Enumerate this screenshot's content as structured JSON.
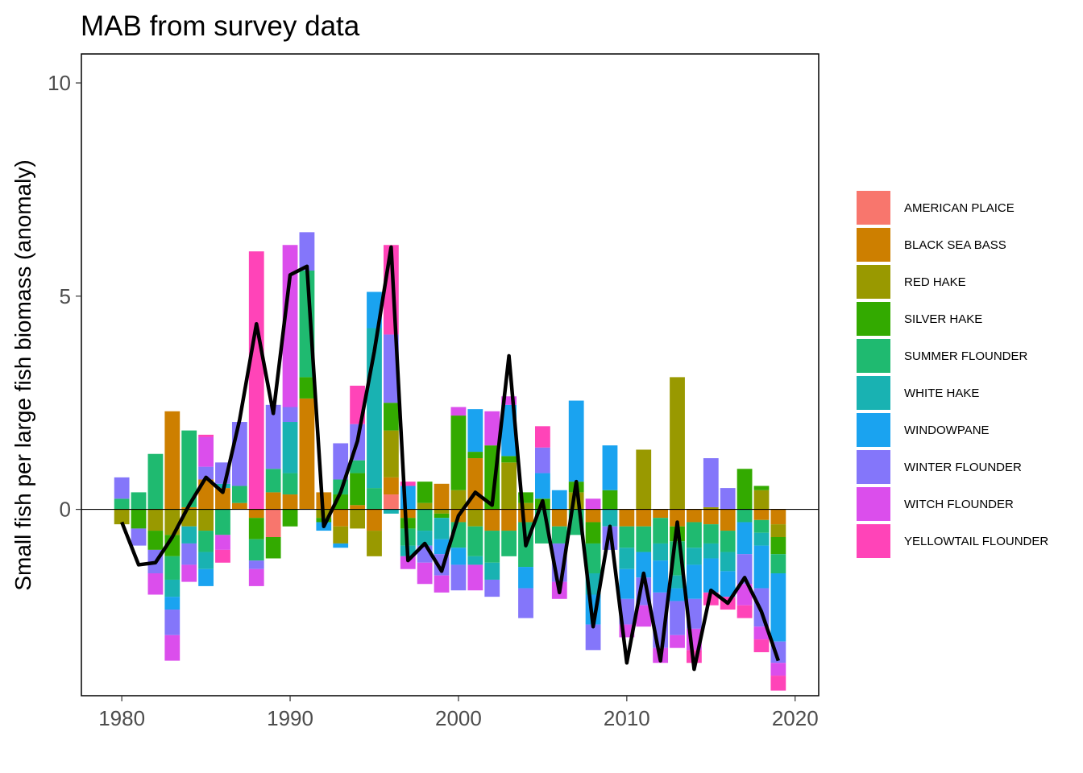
{
  "chart_data": {
    "type": "bar",
    "stacked": true,
    "title": "MAB from survey data",
    "xlabel": "",
    "ylabel": "Small fish per large fish biomass (anomaly)",
    "xlim": [
      1977.6,
      2021.4
    ],
    "ylim": [
      -4.37,
      10.68
    ],
    "xticks": [
      1980,
      1990,
      2000,
      2010,
      2020
    ],
    "xtick_labels": [
      "1980",
      "1990",
      "2000",
      "2010",
      "2020"
    ],
    "yticks": [
      0,
      5,
      10
    ],
    "ytick_labels": [
      "0",
      "5",
      "10"
    ],
    "zero_line": 0,
    "grid": false,
    "legend_position": "right",
    "line_series": {
      "name": "",
      "color": "#000000",
      "x": [
        1980,
        1981,
        1982,
        1983,
        1984,
        1985,
        1986,
        1987,
        1988,
        1989,
        1990,
        1991,
        1992,
        1993,
        1994,
        1995,
        1996,
        1997,
        1998,
        1999,
        2000,
        2001,
        2002,
        2003,
        2004,
        2005,
        2006,
        2007,
        2008,
        2009,
        2010,
        2011,
        2012,
        2013,
        2014,
        2015,
        2016,
        2017,
        2018,
        2019
      ],
      "y": [
        -0.3,
        -1.3,
        -1.25,
        -0.65,
        0.1,
        0.75,
        0.4,
        2.1,
        4.35,
        2.25,
        5.5,
        5.7,
        -0.4,
        0.4,
        1.6,
        3.7,
        6.15,
        -1.2,
        -0.8,
        -1.45,
        -0.15,
        0.4,
        0.1,
        3.6,
        -0.85,
        0.2,
        -1.95,
        0.65,
        -2.75,
        -0.4,
        -3.6,
        -1.5,
        -3.55,
        -0.3,
        -3.75,
        -1.9,
        -2.2,
        -1.6,
        -2.4,
        -3.55
      ]
    },
    "series": [
      {
        "name": "AMERICAN PLAICE",
        "color": "#F8766D",
        "values": [
          0,
          0,
          0,
          0,
          0,
          0,
          0,
          0,
          0,
          -0.65,
          0,
          0,
          0,
          0,
          0,
          0,
          0.35,
          0,
          0,
          0,
          0,
          0,
          0,
          0,
          0,
          0,
          0,
          0,
          0,
          0,
          0,
          0,
          0,
          0,
          0,
          0,
          0,
          0,
          0,
          0
        ]
      },
      {
        "name": "BLACK SEA BASS",
        "color": "#CD7F00",
        "values": [
          0,
          0,
          0,
          2.3,
          0.05,
          0.7,
          0.5,
          0.15,
          -0.2,
          0.4,
          0.35,
          2.6,
          0.4,
          -0.4,
          0.1,
          -0.5,
          0.4,
          -0.2,
          0,
          0.6,
          -0.3,
          1.2,
          -0.5,
          -0.5,
          -0.3,
          0,
          -0.4,
          0,
          -0.3,
          0,
          -0.4,
          -0.4,
          -0.2,
          -0.4,
          -0.3,
          -0.35,
          -0.5,
          0,
          -0.25,
          -0.35
        ]
      },
      {
        "name": "RED HAKE",
        "color": "#999900",
        "values": [
          -0.35,
          0,
          -0.5,
          -0.6,
          -0.4,
          -0.5,
          0,
          0,
          0,
          0,
          0,
          0,
          -0.2,
          -0.4,
          -0.45,
          -0.6,
          1.1,
          0,
          0.15,
          -0.1,
          0.45,
          -0.4,
          0,
          1.1,
          0.15,
          0,
          0,
          0.4,
          0,
          0,
          0,
          1.4,
          0,
          3.1,
          0,
          0.05,
          0,
          0,
          0.45,
          -0.3
        ]
      },
      {
        "name": "SILVER HAKE",
        "color": "#33AA00",
        "values": [
          0,
          -0.45,
          -0.45,
          -0.5,
          0,
          0,
          0,
          0,
          -0.5,
          -0.5,
          -0.4,
          0.5,
          -0.1,
          0.35,
          0.75,
          0,
          0.65,
          -0.25,
          0.5,
          -0.1,
          1.75,
          0.15,
          1.5,
          0.15,
          0.25,
          0.25,
          0,
          0.25,
          -0.5,
          0.45,
          0,
          0,
          0,
          -0.35,
          0,
          0,
          0,
          0.95,
          0.1,
          -0.4
        ]
      },
      {
        "name": "SUMMER FLOUNDER",
        "color": "#1FBA70",
        "values": [
          0.25,
          0.4,
          1.3,
          -0.55,
          1.8,
          -0.5,
          -0.6,
          0.4,
          -0.5,
          0.55,
          0.5,
          2.5,
          0,
          0.35,
          0.3,
          0.5,
          0,
          -0.4,
          -0.5,
          0,
          -0.6,
          -0.7,
          -0.75,
          -0.6,
          -1.05,
          -0.8,
          -0.4,
          -0.6,
          -0.7,
          0,
          -0.5,
          -0.6,
          -0.6,
          -0.8,
          -0.6,
          -0.45,
          -0.5,
          -0.3,
          -0.3,
          -0.45
        ]
      },
      {
        "name": "WHITE HAKE",
        "color": "#19B2B2",
        "values": [
          0,
          0,
          0,
          -0.4,
          -0.4,
          -0.4,
          0.1,
          0,
          0,
          0,
          1.2,
          0,
          0,
          0,
          0,
          3.75,
          -0.1,
          -0.25,
          -0.35,
          -0.5,
          0,
          -0.2,
          -0.4,
          0,
          0,
          0,
          0,
          0,
          -0.5,
          -0.4,
          -0.5,
          0,
          -0.4,
          -0.3,
          -0.4,
          -0.35,
          -0.45,
          0,
          -0.3,
          0
        ]
      },
      {
        "name": "WINDOWPANE",
        "color": "#1AA3F0",
        "values": [
          0,
          0,
          0,
          -0.3,
          0,
          -0.4,
          0,
          0,
          0,
          0,
          0,
          0,
          -0.2,
          -0.1,
          0,
          0.85,
          0,
          0.55,
          0,
          -0.35,
          -0.4,
          1.0,
          0,
          1.2,
          -0.5,
          0.6,
          0.45,
          1.9,
          -0.7,
          1.05,
          -0.7,
          -0.6,
          -0.75,
          -0.3,
          -0.8,
          -0.8,
          -0.6,
          -0.75,
          -1.0,
          -1.6
        ]
      },
      {
        "name": "WINTER FLOUNDER",
        "color": "#8476FA",
        "values": [
          0.5,
          -0.4,
          -0.55,
          -0.6,
          -0.5,
          0.3,
          0.5,
          1.5,
          -0.2,
          1.5,
          0.35,
          0.9,
          0,
          0.85,
          0.85,
          0,
          1.6,
          0,
          -0.4,
          -0.5,
          -0.6,
          0,
          -0.4,
          0,
          -0.7,
          0.6,
          -0.9,
          0,
          -0.6,
          -0.55,
          -0.6,
          -0.65,
          -1.3,
          -0.8,
          -0.7,
          1.15,
          0.5,
          -0.7,
          -0.9,
          -0.5
        ]
      },
      {
        "name": "WITCH FLOUNDER",
        "color": "#DB4EEC",
        "values": [
          0,
          0,
          -0.5,
          -0.6,
          -0.4,
          0.7,
          -0.35,
          0,
          -0.4,
          0,
          3.8,
          0,
          0,
          0,
          0,
          0,
          0,
          -0.3,
          -0.5,
          -0.4,
          0.2,
          -0.6,
          0.8,
          0.2,
          0,
          0,
          -0.4,
          0,
          0.25,
          0,
          -0.3,
          -0.5,
          -0.35,
          -0.3,
          -0.5,
          0,
          0,
          -0.5,
          -0.3,
          -0.3
        ]
      },
      {
        "name": "YELLOWTAIL FLOUNDER",
        "color": "#FF44B8",
        "values": [
          0,
          0,
          0,
          0,
          0,
          0.05,
          -0.3,
          0,
          6.05,
          0,
          0,
          0,
          0,
          0,
          0.9,
          0,
          2.1,
          0.1,
          0,
          0,
          0,
          0,
          0,
          0,
          0,
          0.5,
          0,
          0,
          0,
          0,
          0,
          0,
          0,
          0,
          -0.3,
          -0.3,
          -0.3,
          -0.3,
          -0.3,
          -0.35
        ]
      }
    ],
    "x": [
      1980,
      1981,
      1982,
      1983,
      1984,
      1985,
      1986,
      1987,
      1988,
      1989,
      1990,
      1991,
      1992,
      1993,
      1994,
      1995,
      1996,
      1997,
      1998,
      1999,
      2000,
      2001,
      2002,
      2003,
      2004,
      2005,
      2006,
      2007,
      2008,
      2009,
      2010,
      2011,
      2012,
      2013,
      2014,
      2015,
      2016,
      2017,
      2018,
      2019
    ]
  }
}
